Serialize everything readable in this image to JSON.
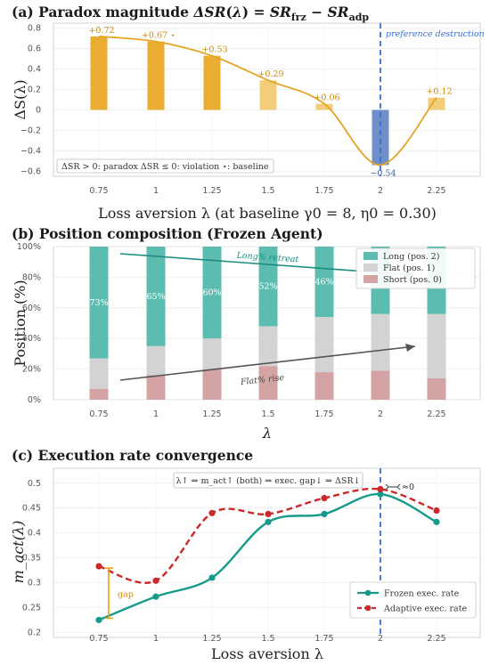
{
  "chart_data": [
    {
      "type": "bar",
      "title": "(a) Paradox magnitude ΔSR(λ) = SR_frz − SR_adp",
      "xlabel": "Loss aversion λ (at baseline γ0 = 8, η0 = 0.30)",
      "ylabel": "ΔS(λ)",
      "categories": [
        "0.75",
        "1",
        "1.25",
        "1.5",
        "1.75",
        "2",
        "2.25"
      ],
      "values": [
        0.72,
        0.67,
        0.53,
        0.29,
        0.06,
        -0.54,
        0.12
      ],
      "data_labels": [
        "+0.72",
        "+0.67 ⋆",
        "+0.53",
        "+0.29",
        "+0.06",
        "−0.54",
        "+0.12"
      ],
      "ylim": [
        -0.65,
        0.85
      ],
      "yticks": [
        "−0.6",
        "−0.4",
        "−0.2",
        "0",
        "0.2",
        "0.4",
        "0.6",
        "0.8"
      ],
      "grid": true,
      "colors": {
        "positive_strong": "#e9ad32",
        "positive_light": "#f2cd7a",
        "negative": "#6f8fc9",
        "curve": "#e3a523",
        "vline": "#3a6fd0"
      },
      "annotations": {
        "vline_at": "2",
        "vline_label": "preference destruction",
        "note": "ΔSR > 0: paradox   ΔSR ≤ 0: violation   ⋆: baseline"
      }
    },
    {
      "type": "bar",
      "stacked": true,
      "title": "(b) Position composition (Frozen Agent)",
      "xlabel": "λ",
      "ylabel": "Position (%)",
      "categories": [
        "0.75",
        "1",
        "1.25",
        "1.5",
        "1.75",
        "2",
        "2.25"
      ],
      "series": [
        {
          "name": "Short (pos. 0)",
          "values": [
            7,
            16,
            20,
            22,
            18,
            19,
            14
          ]
        },
        {
          "name": "Flat (pos. 1)",
          "values": [
            20,
            19,
            20,
            26,
            36,
            37,
            42
          ]
        },
        {
          "name": "Long (pos. 2)",
          "values": [
            73,
            65,
            60,
            52,
            46,
            44,
            44
          ]
        }
      ],
      "data_labels": {
        "Long (pos. 2)": [
          "73%",
          "65%",
          "60%",
          "52%",
          "46%",
          "",
          ""
        ]
      },
      "yticks": [
        "0%",
        "20%",
        "40%",
        "60%",
        "80%",
        "100%"
      ],
      "ylim": [
        0,
        100
      ],
      "grid": true,
      "legend_placement": "top-right",
      "colors": {
        "Short (pos. 0)": "#d4a3a3",
        "Flat (pos. 1)": "#d3d3d3",
        "Long (pos. 2)": "#5dbcb0",
        "long_arrow": "#1b8c80",
        "flat_arrow": "#555555"
      },
      "annotations": {
        "long_arrow_label": "Long% retreat",
        "flat_arrow_label": "Flat% rise"
      }
    },
    {
      "type": "line",
      "title": "(c) Execution rate convergence",
      "xlabel": "Loss aversion λ",
      "ylabel": "m_act(λ)",
      "x": [
        "0.75",
        "1",
        "1.25",
        "1.5",
        "1.75",
        "2",
        "2.25"
      ],
      "series": [
        {
          "name": "Frozen exec. rate",
          "values": [
            0.225,
            0.272,
            0.31,
            0.422,
            0.438,
            0.478,
            0.422
          ]
        },
        {
          "name": "Adaptive exec. rate",
          "values": [
            0.333,
            0.304,
            0.44,
            0.438,
            0.47,
            0.488,
            0.445
          ]
        }
      ],
      "yticks": [
        "0.2",
        "0.25",
        "0.3",
        "0.35",
        "0.4",
        "0.45",
        "0.5"
      ],
      "ylim": [
        0.19,
        0.53
      ],
      "grid": true,
      "legend_placement": "bottom-right",
      "colors": {
        "Frozen exec. rate": "#169b8a",
        "Adaptive exec. rate": "#cc2a2a",
        "gap": "#e5a21c",
        "vline": "#3a6fd0"
      },
      "annotations": {
        "header": "λ↑ ⇒ m_act↑ (both) ⇒ exec. gap↓ ⇒ ΔSR↓",
        "gap_label": "gap",
        "converge_label": "≈0",
        "vline_at": "2"
      }
    }
  ]
}
